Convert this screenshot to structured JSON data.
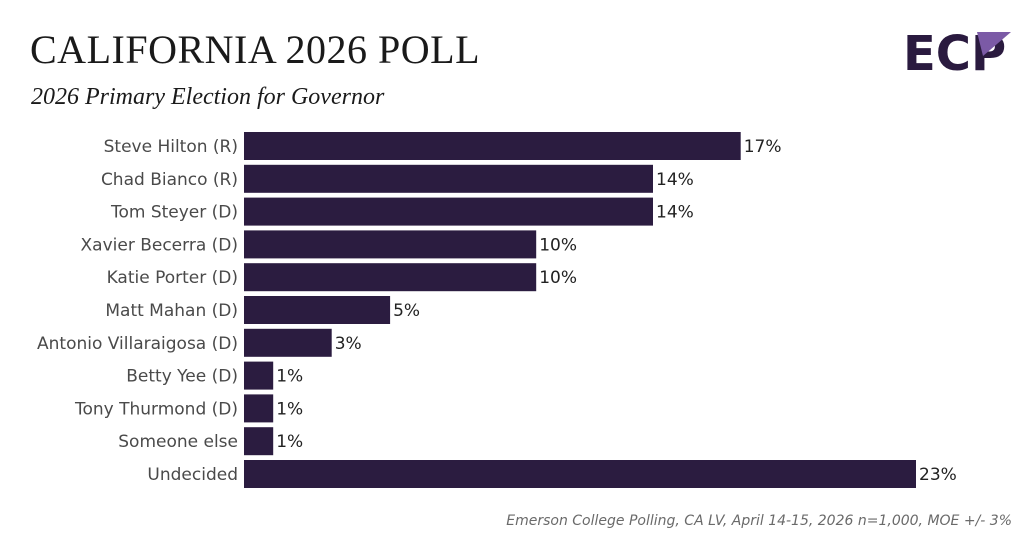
{
  "header": {
    "title": "CALIFORNIA 2026 POLL",
    "subtitle": "2026 Primary Election for Governor"
  },
  "logo": {
    "text": "ECP",
    "colors": {
      "primary": "#2a1a3f",
      "accent": "#7b5aa6"
    }
  },
  "colors": {
    "bar": "#2b1c40"
  },
  "chart_data": {
    "type": "bar",
    "orientation": "horizontal",
    "title": "CALIFORNIA 2026 POLL",
    "subtitle": "2026 Primary Election for Governor",
    "categories": [
      "Steve Hilton (R)",
      "Chad Bianco (R)",
      "Tom Steyer (D)",
      "Xavier Becerra (D)",
      "Katie Porter (D)",
      "Matt Mahan (D)",
      "Antonio Villaraigosa (D)",
      "Betty Yee (D)",
      "Tony Thurmond (D)",
      "Someone else",
      "Undecided"
    ],
    "values": [
      17,
      14,
      14,
      10,
      10,
      5,
      3,
      1,
      1,
      1,
      23
    ],
    "value_labels": [
      "17%",
      "14%",
      "14%",
      "10%",
      "10%",
      "5%",
      "3%",
      "1%",
      "1%",
      "1%",
      "23%"
    ],
    "unit": "%",
    "xlim": [
      0,
      23
    ],
    "xlabel": "",
    "ylabel": "",
    "grid": false,
    "legend": "none"
  },
  "footer": {
    "source": "Emerson College Polling, CA LV, April 14-15, 2026 n=1,000, MOE +/- 3%"
  }
}
